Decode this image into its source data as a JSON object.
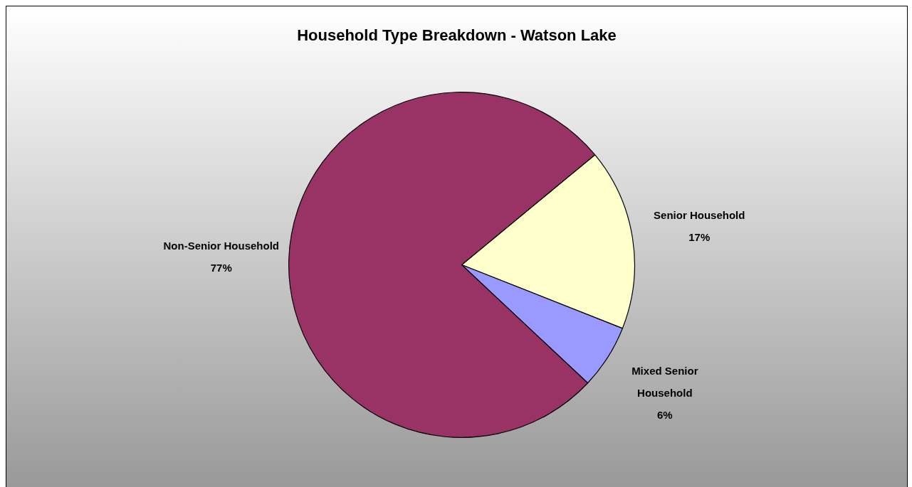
{
  "chart_data": {
    "type": "pie",
    "title": "Household Type Breakdown - Watson Lake",
    "categories": [
      "Senior Household",
      "Mixed Senior Household",
      "Non-Senior Household"
    ],
    "values": [
      17,
      6,
      77
    ],
    "colors": [
      "#ffffcc",
      "#9999ff",
      "#993366"
    ],
    "value_labels": [
      "17%",
      "6%",
      "77%"
    ],
    "legend": false
  }
}
